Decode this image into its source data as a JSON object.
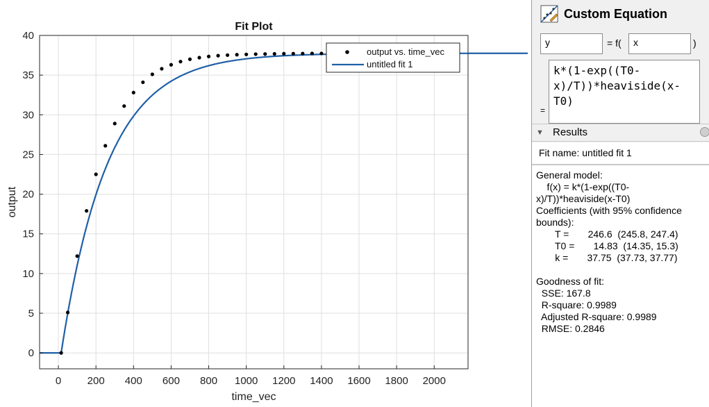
{
  "chart_data": {
    "type": "scatter",
    "title": "Fit Plot",
    "xlabel": "time_vec",
    "ylabel": "output",
    "xlim": [
      -100,
      2180
    ],
    "ylim": [
      -2,
      40
    ],
    "xticks": [
      0,
      200,
      400,
      600,
      800,
      1000,
      1200,
      1400,
      1600,
      1800,
      2000
    ],
    "yticks": [
      0,
      5,
      10,
      15,
      20,
      25,
      30,
      35,
      40
    ],
    "grid": true,
    "legend_position": "top-right",
    "series": [
      {
        "name": "output vs. time_vec",
        "kind": "points",
        "color": "#000000",
        "x": [
          15,
          50,
          100,
          150,
          200,
          250,
          300,
          350,
          400,
          450,
          500,
          550,
          600,
          650,
          700,
          750,
          800,
          850,
          900,
          950,
          1000,
          1050,
          1100,
          1150,
          1200,
          1250,
          1300,
          1350,
          1400,
          1450,
          1500
        ],
        "y": [
          0,
          5.1,
          12.2,
          17.9,
          22.5,
          26.1,
          28.9,
          31.1,
          32.8,
          34.1,
          35.1,
          35.8,
          36.3,
          36.7,
          37.0,
          37.2,
          37.35,
          37.45,
          37.52,
          37.57,
          37.61,
          37.64,
          37.66,
          37.68,
          37.7,
          37.71,
          37.72,
          37.73,
          37.73,
          37.74,
          37.74
        ]
      },
      {
        "name": "untitled fit 1",
        "kind": "line",
        "color": "#1f5fa6"
      }
    ],
    "model": {
      "k": 37.75,
      "T": 246.6,
      "T0": 14.83
    }
  },
  "equation_panel": {
    "title": "Custom Equation",
    "y_field": "y",
    "fx_label": "= f(",
    "x_field": "x",
    "close_paren": ")",
    "equals": "=",
    "equation": "k*(1-exp((T0-\nx)/T))*heaviside(x-\nT0)"
  },
  "results": {
    "header": "Results",
    "fit_name": "Fit name: untitled fit 1",
    "lines": [
      "General model:",
      "    f(x) = k*(1-exp((T0-",
      "x)/T))*heaviside(x-T0)",
      "Coefficients (with 95% confidence",
      "bounds):",
      "       T =       246.6  (245.8, 247.4)",
      "       T0 =       14.83  (14.35, 15.3)",
      "       k =       37.75  (37.73, 37.77)",
      "",
      "Goodness of fit:",
      "  SSE: 167.8",
      "  R-square: 0.9989",
      "  Adjusted R-square: 0.9989",
      "  RMSE: 0.2846"
    ]
  }
}
